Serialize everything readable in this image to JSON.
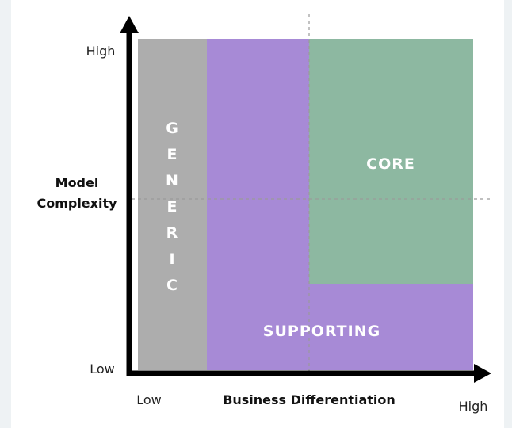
{
  "y_axis": {
    "title_line1": "Model",
    "title_line2": "Complexity",
    "high_label": "High",
    "low_label": "Low"
  },
  "x_axis": {
    "title": "Business Differentiation",
    "low_label": "Low",
    "high_label": "High"
  },
  "regions": {
    "generic": {
      "label": "GENERIC",
      "letters": [
        "G",
        "E",
        "N",
        "E",
        "R",
        "I",
        "C"
      ],
      "color": "#adadad"
    },
    "supporting": {
      "label": "SUPPORTING",
      "color": "#a78ad6"
    },
    "core": {
      "label": "CORE",
      "color": "#8db8a1"
    }
  },
  "colors": {
    "axis": "#000000",
    "divider": "#9a9a9a"
  }
}
